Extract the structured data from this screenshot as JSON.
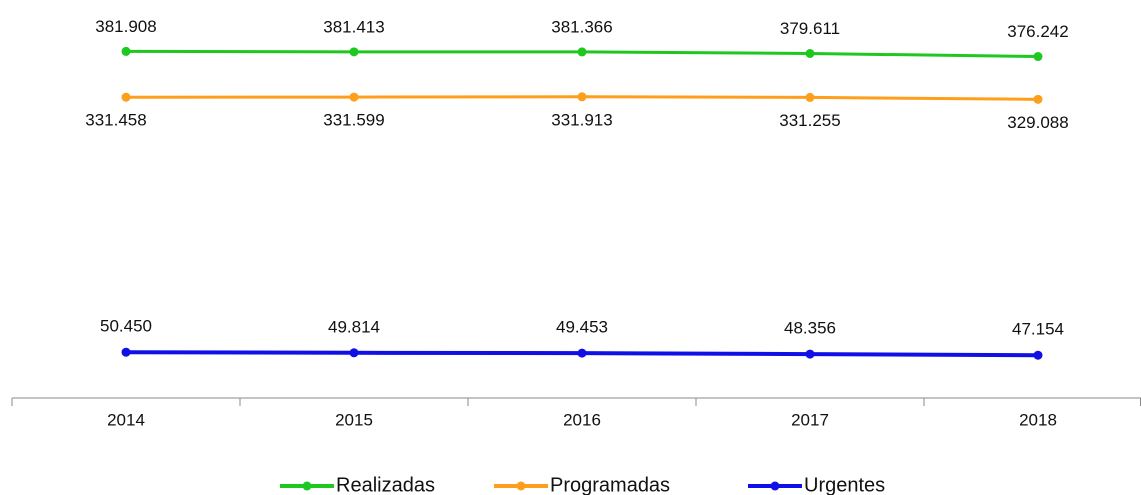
{
  "chart_data": {
    "type": "line",
    "categories": [
      "2014",
      "2015",
      "2016",
      "2017",
      "2018"
    ],
    "series": [
      {
        "name": "Realizadas",
        "color": "#1ec81e",
        "values": [
          381908,
          381413,
          381366,
          379611,
          376242
        ],
        "value_labels": [
          "381.908",
          "381.413",
          "381.366",
          "379.611",
          "376.242"
        ]
      },
      {
        "name": "Programadas",
        "color": "#ff9e1b",
        "values": [
          331458,
          331599,
          331913,
          331255,
          329088
        ],
        "value_labels": [
          "331.458",
          "331.599",
          "331.913",
          "331.255",
          "329.088"
        ]
      },
      {
        "name": "Urgentes",
        "color": "#0f0fe6",
        "values": [
          50450,
          49814,
          49453,
          48356,
          47154
        ],
        "value_labels": [
          "50.450",
          "49.814",
          "49.453",
          "48.356",
          "47.154"
        ]
      }
    ],
    "ylim": [
      0,
      400000
    ]
  }
}
